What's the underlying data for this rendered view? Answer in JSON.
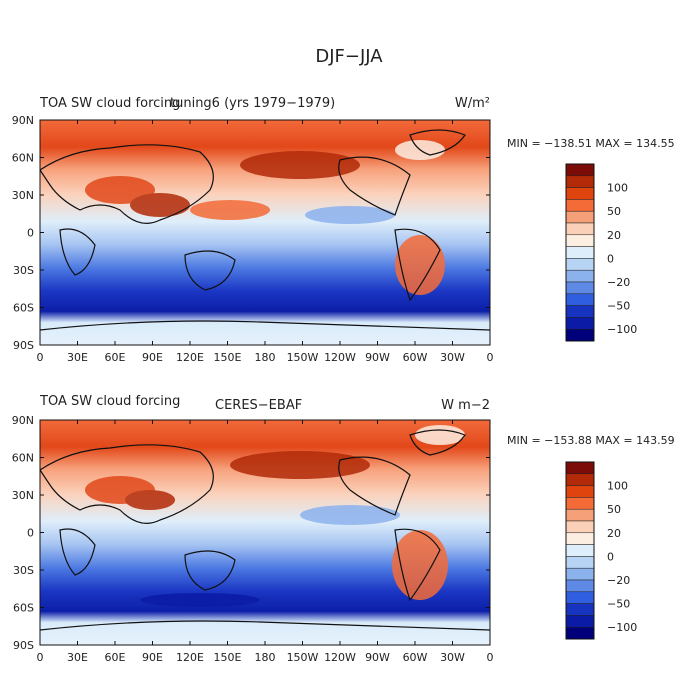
{
  "figure_title": "DJF−JJA",
  "colorbar_labels": [
    "100",
    "50",
    "20",
    "0",
    "−20",
    "−50",
    "−100"
  ],
  "colorbar_colors": [
    "#7b0c08",
    "#b22a08",
    "#e0440e",
    "#f46b38",
    "#f6a07a",
    "#fbd0b8",
    "#fdeee2",
    "#deeefa",
    "#b8d4f4",
    "#8cb2ee",
    "#5e8ae6",
    "#2f5fe0",
    "#1734c0",
    "#0b1ba6",
    "#00007a"
  ],
  "chart_data": [
    {
      "type": "heatmap",
      "title": "TOA SW cloud forcing",
      "subtitle": "tuning6 (yrs 1979−1979)",
      "units": "W/m²",
      "stats": "MIN = −138.51  MAX = 134.55",
      "min": -138.51,
      "max": 134.55,
      "x_ticks": [
        "0",
        "30E",
        "60E",
        "90E",
        "120E",
        "150E",
        "180",
        "150W",
        "120W",
        "90W",
        "60W",
        "30W",
        "0"
      ],
      "y_ticks": [
        "90N",
        "60N",
        "30N",
        "0",
        "30S",
        "60S",
        "90S"
      ]
    },
    {
      "type": "heatmap",
      "title": "TOA SW cloud forcing",
      "subtitle": "CERES−EBAF",
      "units": "W m−2",
      "stats": "MIN = −153.88  MAX = 143.59",
      "min": -153.88,
      "max": 143.59,
      "x_ticks": [
        "0",
        "30E",
        "60E",
        "90E",
        "120E",
        "150E",
        "180",
        "150W",
        "120W",
        "90W",
        "60W",
        "30W",
        "0"
      ],
      "y_ticks": [
        "90N",
        "60N",
        "30N",
        "0",
        "30S",
        "60S",
        "90S"
      ]
    }
  ]
}
